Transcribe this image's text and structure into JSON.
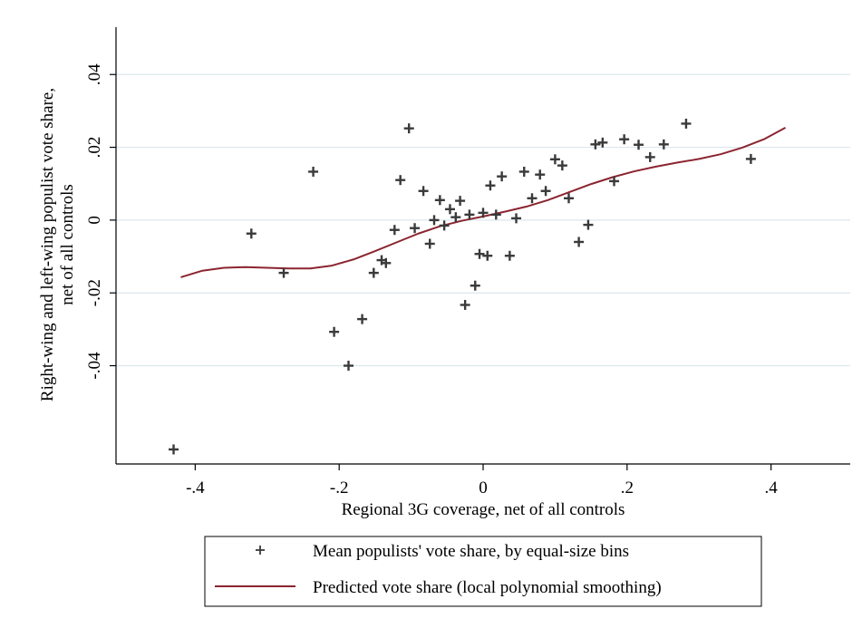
{
  "chart_data": {
    "type": "scatter",
    "xlabel": "Regional 3G coverage, net of all controls",
    "ylabel_line1": "Right-wing and left-wing populist vote share,",
    "ylabel_line2": "net of all controls",
    "xlim": [
      -0.51,
      0.51
    ],
    "ylim": [
      -0.067,
      0.053
    ],
    "xticks": [
      {
        "value": -0.4,
        "label": "-.4"
      },
      {
        "value": -0.2,
        "label": "-.2"
      },
      {
        "value": 0,
        "label": "0"
      },
      {
        "value": 0.2,
        "label": ".2"
      },
      {
        "value": 0.4,
        "label": ".4"
      }
    ],
    "yticks": [
      {
        "value": -0.04,
        "label": "-.04"
      },
      {
        "value": -0.02,
        "label": "-.02"
      },
      {
        "value": 0,
        "label": "0"
      },
      {
        "value": 0.02,
        "label": ".02"
      },
      {
        "value": 0.04,
        "label": ".04"
      }
    ],
    "grid": true,
    "legend_position": "bottom",
    "colors": {
      "markers": "#3a3a3a",
      "line": "#8b2530",
      "grid": "#dbe7ee"
    },
    "series": [
      {
        "name": "Mean populists' vote share, by equal-size bins",
        "kind": "markers",
        "points": [
          [
            -0.43,
            -0.063
          ],
          [
            -0.322,
            -0.0037
          ],
          [
            -0.277,
            -0.0145
          ],
          [
            -0.236,
            0.0133
          ],
          [
            -0.207,
            -0.0307
          ],
          [
            -0.187,
            -0.04
          ],
          [
            -0.168,
            -0.0272
          ],
          [
            -0.152,
            -0.0145
          ],
          [
            -0.141,
            -0.011
          ],
          [
            -0.135,
            -0.0118
          ],
          [
            -0.123,
            -0.0027
          ],
          [
            -0.115,
            0.011
          ],
          [
            -0.103,
            0.0252
          ],
          [
            -0.095,
            -0.0022
          ],
          [
            -0.083,
            0.008
          ],
          [
            -0.074,
            -0.0065
          ],
          [
            -0.068,
            0.0
          ],
          [
            -0.06,
            0.0055
          ],
          [
            -0.054,
            -0.0015
          ],
          [
            -0.046,
            0.003
          ],
          [
            -0.038,
            0.0008
          ],
          [
            -0.032,
            0.0053
          ],
          [
            -0.025,
            -0.0233
          ],
          [
            -0.019,
            0.0015
          ],
          [
            -0.011,
            -0.018
          ],
          [
            -0.005,
            -0.0093
          ],
          [
            0.0,
            0.002
          ],
          [
            0.006,
            -0.0098
          ],
          [
            0.01,
            0.0095
          ],
          [
            0.018,
            0.0015
          ],
          [
            0.026,
            0.012
          ],
          [
            0.037,
            -0.0098
          ],
          [
            0.046,
            0.0005
          ],
          [
            0.057,
            0.0133
          ],
          [
            0.068,
            0.006
          ],
          [
            0.079,
            0.0125
          ],
          [
            0.087,
            0.008
          ],
          [
            0.1,
            0.0167
          ],
          [
            0.11,
            0.015
          ],
          [
            0.119,
            0.006
          ],
          [
            0.133,
            -0.006
          ],
          [
            0.146,
            -0.0013
          ],
          [
            0.156,
            0.0208
          ],
          [
            0.166,
            0.0213
          ],
          [
            0.182,
            0.0107
          ],
          [
            0.196,
            0.0222
          ],
          [
            0.216,
            0.0207
          ],
          [
            0.232,
            0.0173
          ],
          [
            0.251,
            0.0208
          ],
          [
            0.282,
            0.0265
          ],
          [
            0.372,
            0.0168
          ]
        ]
      },
      {
        "name": "Predicted vote share (local polynomial smoothing)",
        "kind": "line",
        "points": [
          [
            -0.42,
            -0.0157
          ],
          [
            -0.39,
            -0.0139
          ],
          [
            -0.36,
            -0.0131
          ],
          [
            -0.33,
            -0.0129
          ],
          [
            -0.3,
            -0.0131
          ],
          [
            -0.27,
            -0.0133
          ],
          [
            -0.24,
            -0.0133
          ],
          [
            -0.21,
            -0.0125
          ],
          [
            -0.18,
            -0.0108
          ],
          [
            -0.15,
            -0.0085
          ],
          [
            -0.12,
            -0.0061
          ],
          [
            -0.09,
            -0.0037
          ],
          [
            -0.06,
            -0.0017
          ],
          [
            -0.03,
            -0.0002
          ],
          [
            0.0,
            0.001
          ],
          [
            0.03,
            0.0023
          ],
          [
            0.06,
            0.0037
          ],
          [
            0.09,
            0.0055
          ],
          [
            0.12,
            0.0077
          ],
          [
            0.15,
            0.0099
          ],
          [
            0.18,
            0.0118
          ],
          [
            0.21,
            0.0134
          ],
          [
            0.24,
            0.0147
          ],
          [
            0.27,
            0.0158
          ],
          [
            0.3,
            0.0168
          ],
          [
            0.33,
            0.0181
          ],
          [
            0.36,
            0.0199
          ],
          [
            0.39,
            0.0222
          ],
          [
            0.42,
            0.0254
          ]
        ]
      }
    ]
  }
}
